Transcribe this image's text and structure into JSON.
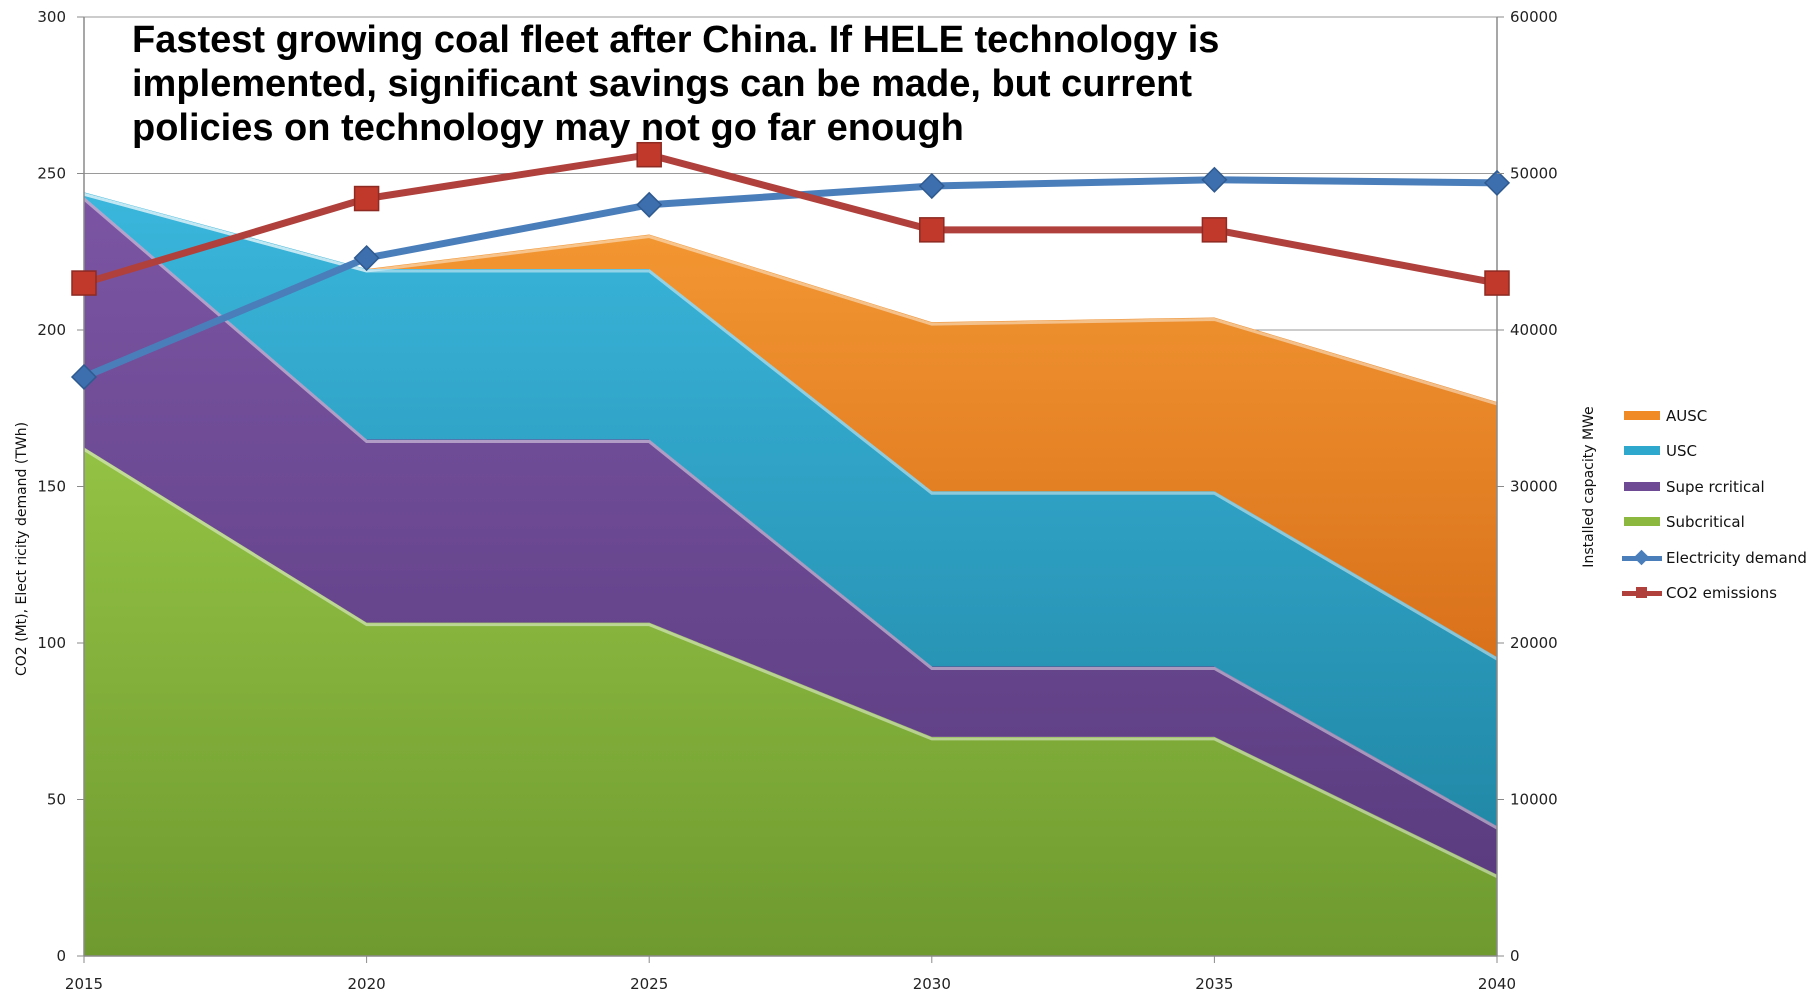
{
  "title_lines": [
    "Fastest growing coal fleet after China. If HELE technology is",
    "implemented, significant savings can be made, but current",
    "policies on technology may not go far enough"
  ],
  "chart_data": {
    "type": "area",
    "title": "Fastest growing coal fleet after China. If HELE technology is implemented, significant savings can be made, but current policies on technology may not go far enough",
    "categories": [
      "2015",
      "2020",
      "2025",
      "2030",
      "2035",
      "2040"
    ],
    "ylabel_left": "CO2  (Mt), Elect ricity demand  (TWh)",
    "ylabel_right": "Installed capacity  MWe",
    "ylim_left": [
      0,
      300
    ],
    "ylim_right": [
      0,
      60000
    ],
    "yticks_left": [
      "0",
      "50",
      "100",
      "150",
      "200",
      "250",
      "300"
    ],
    "yticks_right": [
      "0",
      "10000",
      "20000",
      "30000",
      "40000",
      "50000",
      "60000"
    ],
    "grid": "horizontal",
    "legend_position": "right",
    "area_series": [
      {
        "name": "Subcritical",
        "axis": "right",
        "color": "#8cb83f",
        "values": [
          32500,
          21300,
          21300,
          14000,
          14000,
          5200
        ]
      },
      {
        "name": "Supe rcritical",
        "axis": "right",
        "color": "#6d4a93",
        "values": [
          16000,
          11700,
          11700,
          4500,
          4500,
          3100
        ]
      },
      {
        "name": "USC",
        "axis": "right",
        "color": "#2ea8cc",
        "values": [
          300,
          10900,
          10900,
          11200,
          11200,
          10800
        ]
      },
      {
        "name": "AUSC",
        "axis": "right",
        "color": "#f08a24",
        "values": [
          0,
          0,
          2200,
          10800,
          11100,
          16300
        ]
      }
    ],
    "line_series": [
      {
        "name": "Electricity demand",
        "axis": "left",
        "color": "#4a7ebb",
        "marker": "diamond",
        "values": [
          185,
          223,
          240,
          246,
          248,
          247
        ]
      },
      {
        "name": "CO2 emissions",
        "axis": "left",
        "color": "#b0403c",
        "marker": "square",
        "values": [
          215,
          242,
          256,
          232,
          232,
          215
        ]
      }
    ],
    "legend": [
      {
        "label": "AUSC",
        "kind": "area",
        "color": "#f08a24"
      },
      {
        "label": "USC",
        "kind": "area",
        "color": "#2ea8cc"
      },
      {
        "label": "Supe rcritical",
        "kind": "area",
        "color": "#6d4a93"
      },
      {
        "label": "Subcritical",
        "kind": "area",
        "color": "#8cb83f"
      },
      {
        "label": "Electricity demand",
        "kind": "line",
        "color": "#4a7ebb",
        "marker": "diamond"
      },
      {
        "label": "CO2 emissions",
        "kind": "line",
        "color": "#b0403c",
        "marker": "square"
      }
    ]
  }
}
